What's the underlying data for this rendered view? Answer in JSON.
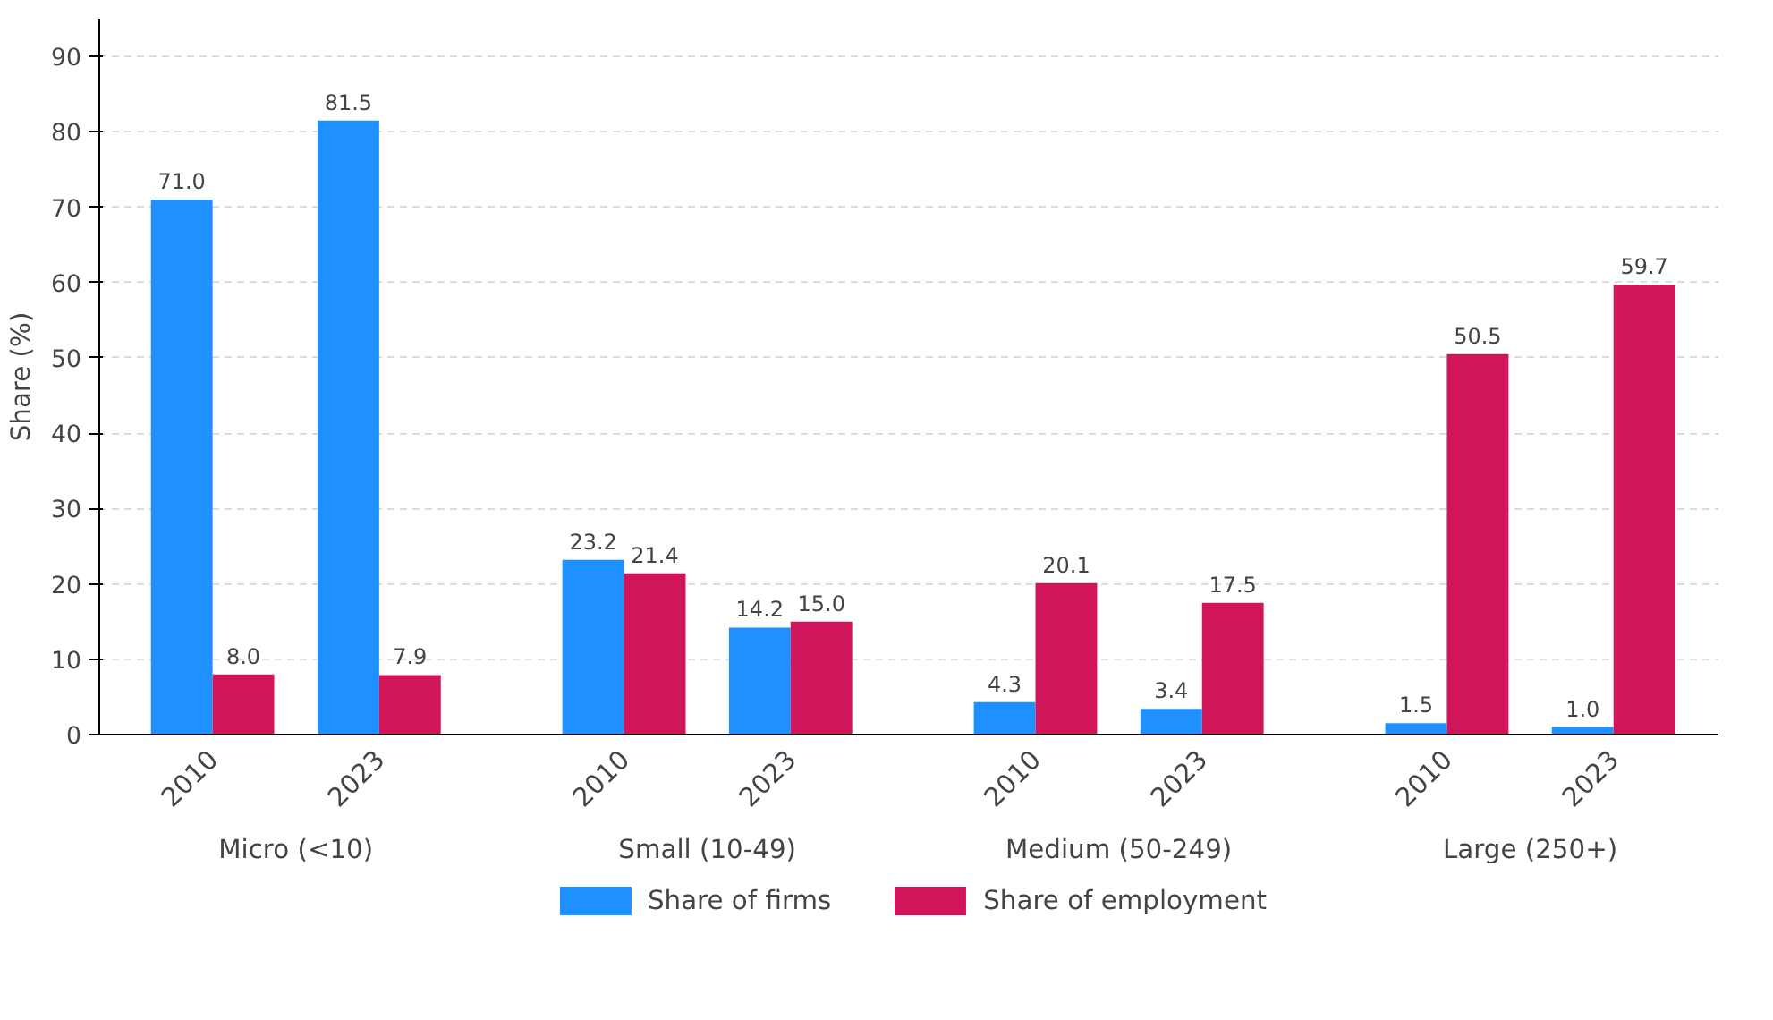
{
  "chart_data": {
    "type": "bar",
    "categories": [
      "2010",
      "2023",
      "2010",
      "2023",
      "2010",
      "2023",
      "2010",
      "2023"
    ],
    "annotations": [
      "Micro (<10)",
      "Small (10-49)",
      "Medium (50-249)",
      "Large (250+)"
    ],
    "series": [
      {
        "name": "Share of firms",
        "color": "#1e90ff",
        "values": [
          71.0,
          81.5,
          23.2,
          14.2,
          4.3,
          3.4,
          1.5,
          1.0
        ],
        "value_labels": [
          "71.0",
          "81.5",
          "23.2",
          "14.2",
          "4.3",
          "3.4",
          "1.5",
          "1.0"
        ]
      },
      {
        "name": "Share of employment",
        "color": "#d0155a",
        "values": [
          8.0,
          7.9,
          21.4,
          15.0,
          20.1,
          17.5,
          50.5,
          59.7
        ],
        "value_labels": [
          "8.0",
          "7.9",
          "21.4",
          "15.0",
          "20.1",
          "17.5",
          "50.5",
          "59.7"
        ]
      }
    ],
    "ylabel": "Share (%)",
    "ylim": [
      0,
      95
    ],
    "yticks": [
      0,
      10,
      20,
      30,
      40,
      50,
      60,
      70,
      80,
      90
    ],
    "grid": "y",
    "legend": "bottom"
  }
}
